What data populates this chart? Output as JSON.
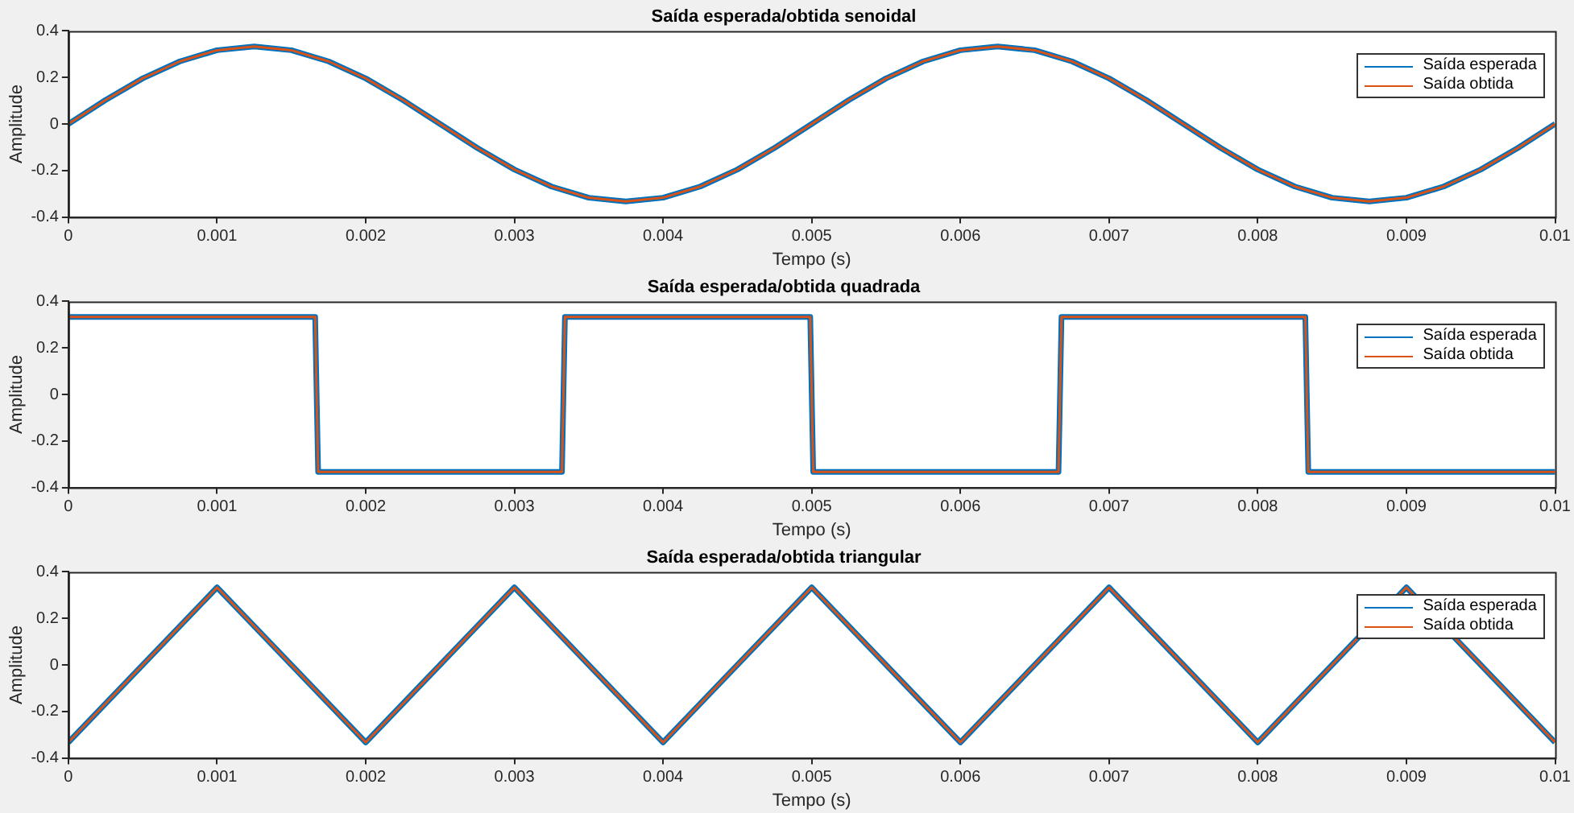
{
  "chart_data": [
    {
      "type": "line",
      "title": "Saída esperada/obtida senoidal",
      "xlabel": "Tempo (s)",
      "ylabel": "Amplitude",
      "xlim": [
        0,
        0.01
      ],
      "xticks": [
        0,
        0.001,
        0.002,
        0.003,
        0.004,
        0.005,
        0.006,
        0.007,
        0.008,
        0.009,
        0.01
      ],
      "ylim": [
        -0.4,
        0.4
      ],
      "yticks": [
        -0.4,
        -0.2,
        0,
        0.2,
        0.4
      ],
      "grid": false,
      "legend": "top right",
      "marker": "none",
      "series": [
        {
          "name": "Saída esperada",
          "color": "#0072bd",
          "x": [
            0,
            0.00025,
            0.0005,
            0.00075,
            0.001,
            0.00125,
            0.0015,
            0.00175,
            0.002,
            0.00225,
            0.0025,
            0.00275,
            0.003,
            0.00325,
            0.0035,
            0.00375,
            0.004,
            0.00425,
            0.0045,
            0.00475,
            0.005,
            0.00525,
            0.0055,
            0.00575,
            0.006,
            0.00625,
            0.0065,
            0.00675,
            0.007,
            0.00725,
            0.0075,
            0.00775,
            0.008,
            0.00825,
            0.0085,
            0.00875,
            0.009,
            0.00925,
            0.0095,
            0.00975,
            0.01
          ],
          "values": [
            0,
            0.103,
            0.196,
            0.269,
            0.317,
            0.333,
            0.317,
            0.269,
            0.196,
            0.103,
            0,
            -0.103,
            -0.196,
            -0.269,
            -0.317,
            -0.333,
            -0.317,
            -0.269,
            -0.196,
            -0.103,
            0,
            0.103,
            0.196,
            0.269,
            0.317,
            0.333,
            0.317,
            0.269,
            0.196,
            0.103,
            0,
            -0.103,
            -0.196,
            -0.269,
            -0.317,
            -0.333,
            -0.317,
            -0.269,
            -0.196,
            -0.103,
            0
          ]
        },
        {
          "name": "Saída obtida",
          "color": "#d95319",
          "x": [
            0,
            0.00025,
            0.0005,
            0.00075,
            0.001,
            0.00125,
            0.0015,
            0.00175,
            0.002,
            0.00225,
            0.0025,
            0.00275,
            0.003,
            0.00325,
            0.0035,
            0.00375,
            0.004,
            0.00425,
            0.0045,
            0.00475,
            0.005,
            0.00525,
            0.0055,
            0.00575,
            0.006,
            0.00625,
            0.0065,
            0.00675,
            0.007,
            0.00725,
            0.0075,
            0.00775,
            0.008,
            0.00825,
            0.0085,
            0.00875,
            0.009,
            0.00925,
            0.0095,
            0.00975,
            0.01
          ],
          "values": [
            0,
            0.103,
            0.196,
            0.269,
            0.317,
            0.333,
            0.317,
            0.269,
            0.196,
            0.103,
            0,
            -0.103,
            -0.196,
            -0.269,
            -0.317,
            -0.333,
            -0.317,
            -0.269,
            -0.196,
            -0.103,
            0,
            0.103,
            0.196,
            0.269,
            0.317,
            0.333,
            0.317,
            0.269,
            0.196,
            0.103,
            0,
            -0.103,
            -0.196,
            -0.269,
            -0.317,
            -0.333,
            -0.317,
            -0.269,
            -0.196,
            -0.103,
            0
          ]
        }
      ]
    },
    {
      "type": "line",
      "title": "Saída esperada/obtida quadrada",
      "xlabel": "Tempo (s)",
      "ylabel": "Amplitude",
      "xlim": [
        0,
        0.01
      ],
      "xticks": [
        0,
        0.001,
        0.002,
        0.003,
        0.004,
        0.005,
        0.006,
        0.007,
        0.008,
        0.009,
        0.01
      ],
      "ylim": [
        -0.4,
        0.4
      ],
      "yticks": [
        -0.4,
        -0.2,
        0,
        0.2,
        0.4
      ],
      "grid": false,
      "legend": "top right",
      "marker": "none",
      "series": [
        {
          "name": "Saída esperada",
          "color": "#0072bd",
          "x": [
            0,
            0.00166,
            0.00168,
            0.00332,
            0.00334,
            0.00499,
            0.00501,
            0.00666,
            0.00668,
            0.00832,
            0.00834,
            0.01
          ],
          "values": [
            0.333,
            0.333,
            -0.333,
            -0.333,
            0.333,
            0.333,
            -0.333,
            -0.333,
            0.333,
            0.333,
            -0.333,
            -0.333
          ]
        },
        {
          "name": "Saída obtida",
          "color": "#d95319",
          "x": [
            0,
            0.00166,
            0.00168,
            0.00332,
            0.00334,
            0.00499,
            0.00501,
            0.00666,
            0.00668,
            0.00832,
            0.00834,
            0.01
          ],
          "values": [
            0.333,
            0.333,
            -0.333,
            -0.333,
            0.333,
            0.333,
            -0.333,
            -0.333,
            0.333,
            0.333,
            -0.333,
            -0.333
          ]
        }
      ]
    },
    {
      "type": "line",
      "title": "Saída esperada/obtida triangular",
      "xlabel": "Tempo (s)",
      "ylabel": "Amplitude",
      "xlim": [
        0,
        0.01
      ],
      "xticks": [
        0,
        0.001,
        0.002,
        0.003,
        0.004,
        0.005,
        0.006,
        0.007,
        0.008,
        0.009,
        0.01
      ],
      "ylim": [
        -0.4,
        0.4
      ],
      "yticks": [
        -0.4,
        -0.2,
        0,
        0.2,
        0.4
      ],
      "grid": false,
      "legend": "top right",
      "marker": "none",
      "series": [
        {
          "name": "Saída esperada",
          "color": "#0072bd",
          "x": [
            0,
            0.001,
            0.002,
            0.003,
            0.004,
            0.005,
            0.006,
            0.007,
            0.008,
            0.009,
            0.01
          ],
          "values": [
            -0.333,
            0.333,
            -0.333,
            0.333,
            -0.333,
            0.333,
            -0.333,
            0.333,
            -0.333,
            0.333,
            -0.333
          ]
        },
        {
          "name": "Saída obtida",
          "color": "#d95319",
          "x": [
            0,
            0.001,
            0.002,
            0.003,
            0.004,
            0.005,
            0.006,
            0.007,
            0.008,
            0.009,
            0.01
          ],
          "values": [
            -0.333,
            0.333,
            -0.333,
            0.333,
            -0.333,
            0.333,
            -0.333,
            0.333,
            -0.333,
            0.333,
            -0.333
          ]
        }
      ]
    }
  ]
}
